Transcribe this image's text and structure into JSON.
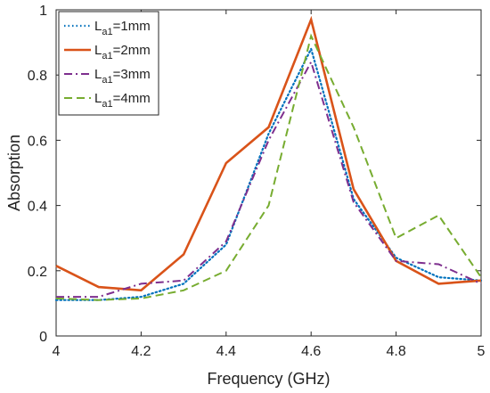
{
  "chart_data": {
    "type": "line",
    "title": "",
    "xlabel": "Frequency (GHz)",
    "ylabel": "Absorption",
    "xlim": [
      4,
      5
    ],
    "ylim": [
      0,
      1
    ],
    "xticks": [
      4,
      4.2,
      4.4,
      4.6,
      4.8,
      5
    ],
    "yticks": [
      0,
      0.2,
      0.4,
      0.6,
      0.8,
      1
    ],
    "xtick_labels": [
      "4",
      "4.2",
      "4.4",
      "4.6",
      "4.8",
      "5"
    ],
    "ytick_labels": [
      "0",
      "0.2",
      "0.4",
      "0.6",
      "0.8",
      "1"
    ],
    "grid": false,
    "legend_position": "top-left",
    "x": [
      4.0,
      4.1,
      4.2,
      4.3,
      4.4,
      4.5,
      4.6,
      4.7,
      4.8,
      4.9,
      5.0
    ],
    "series": [
      {
        "name": "La1=1mm",
        "name_main": "L",
        "name_sub": "a1",
        "name_rest": "=1mm",
        "color": "#0072bd",
        "dash": "dotted",
        "values": [
          0.11,
          0.11,
          0.12,
          0.16,
          0.28,
          0.62,
          0.88,
          0.42,
          0.24,
          0.18,
          0.17
        ]
      },
      {
        "name": "La1=2mm",
        "name_main": "L",
        "name_sub": "a1",
        "name_rest": "=2mm",
        "color": "#d95319",
        "dash": "solid",
        "values": [
          0.215,
          0.15,
          0.14,
          0.25,
          0.53,
          0.64,
          0.97,
          0.45,
          0.23,
          0.16,
          0.17
        ]
      },
      {
        "name": "La1=3mm",
        "name_main": "L",
        "name_sub": "a1",
        "name_rest": "=3mm",
        "color": "#7e2f8e",
        "dash": "dashdot",
        "values": [
          0.12,
          0.12,
          0.16,
          0.17,
          0.29,
          0.6,
          0.84,
          0.41,
          0.23,
          0.22,
          0.16
        ]
      },
      {
        "name": "La1=4mm",
        "name_main": "L",
        "name_sub": "a1",
        "name_rest": "=4mm",
        "color": "#77ac30",
        "dash": "dashed",
        "values": [
          0.115,
          0.11,
          0.115,
          0.14,
          0.2,
          0.4,
          0.92,
          0.64,
          0.3,
          0.37,
          0.18
        ]
      }
    ]
  }
}
